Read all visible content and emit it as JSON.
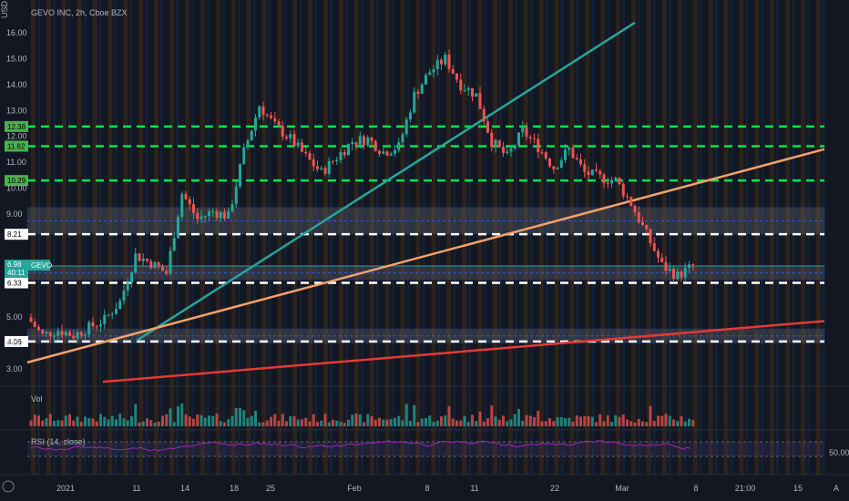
{
  "header": {
    "title": "GEVO INC, 2h, Cboe BZX",
    "currency": "USD"
  },
  "colors": {
    "bg": "#131722",
    "up": "#26a69a",
    "down": "#ef5350",
    "green_line": "#00e64d",
    "white_line": "#ffffff",
    "trend_teal": "#26a69a",
    "trend_orange": "#f5a16c",
    "trend_red": "#e53935",
    "zone_fill": "#787b86",
    "zone_border": "#2962ff",
    "rsi_line": "#9c27b0",
    "rsi_band": "#7e57c2"
  },
  "chart_data": {
    "type": "candlestick",
    "y_axis": {
      "min": 2.4,
      "max": 16.5,
      "ticks": [
        "3.00",
        "4.00",
        "5.00",
        "9.00",
        "10.00",
        "11.00",
        "12.00",
        "13.00",
        "14.00",
        "15.00",
        "16.00"
      ]
    },
    "x_axis": {
      "labels": [
        "2021",
        "11",
        "14",
        "18",
        "25",
        "Feb",
        "8",
        "11",
        "22",
        "Mar",
        "8",
        "21:00",
        "15",
        "A"
      ]
    },
    "levels": [
      {
        "label": "12.38",
        "value": 12.38,
        "color": "#00e64d",
        "style": "dashed"
      },
      {
        "label": "11.62",
        "value": 11.62,
        "color": "#00e64d",
        "style": "dashed"
      },
      {
        "label": "10.29",
        "value": 10.29,
        "color": "#00e64d",
        "style": "dashed"
      },
      {
        "label": "8.21",
        "value": 8.21,
        "color": "#ffffff",
        "style": "dashed"
      },
      {
        "label": "6.33",
        "value": 6.33,
        "color": "#ffffff",
        "style": "dashed"
      },
      {
        "label": "4.06",
        "value": 4.06,
        "color": "#ffffff",
        "style": "dashed"
      }
    ],
    "zones": [
      {
        "low": 8.21,
        "high": 9.25
      },
      {
        "low": 6.45,
        "high": 7.0
      },
      {
        "low": 4.0,
        "high": 4.55
      }
    ],
    "current": {
      "symbol": "GEVO",
      "price": "6.98",
      "countdown": "40:11"
    },
    "trendlines": [
      {
        "name": "teal",
        "color": "#26a69a",
        "from": [
          "10",
          4.1
        ],
        "to": [
          "21:00",
          16.4
        ]
      },
      {
        "name": "orange",
        "color": "#f5a16c",
        "from": [
          "2021",
          3.25
        ],
        "to": [
          "A",
          11.5
        ]
      },
      {
        "name": "red",
        "color": "#e53935",
        "from": [
          "11",
          2.5
        ],
        "to": [
          "A",
          4.85
        ]
      }
    ],
    "close_path": [
      [
        "2021",
        5.0
      ],
      [
        "5",
        4.3
      ],
      [
        "6",
        4.5
      ],
      [
        "7",
        4.3
      ],
      [
        "8",
        4.6
      ],
      [
        "11",
        4.9
      ],
      [
        "12",
        5.6
      ],
      [
        "13",
        7.4
      ],
      [
        "14",
        7.1
      ],
      [
        "15",
        6.7
      ],
      [
        "18",
        9.8
      ],
      [
        "19",
        8.8
      ],
      [
        "20",
        9.1
      ],
      [
        "21",
        8.9
      ],
      [
        "22",
        11.4
      ],
      [
        "25",
        13.2
      ],
      [
        "26",
        12.4
      ],
      [
        "27",
        11.9
      ],
      [
        "28",
        11.2
      ],
      [
        "29",
        10.6
      ],
      [
        "Feb",
        11.2
      ],
      [
        "2",
        11.8
      ],
      [
        "3",
        11.9
      ],
      [
        "4",
        11.4
      ],
      [
        "5",
        11.6
      ],
      [
        "8",
        13.6
      ],
      [
        "9",
        14.5
      ],
      [
        "10",
        15.0
      ],
      [
        "11",
        14.0
      ],
      [
        "12",
        13.6
      ],
      [
        "16",
        11.8
      ],
      [
        "17",
        11.2
      ],
      [
        "18",
        12.2
      ],
      [
        "19",
        11.6
      ],
      [
        "22",
        10.8
      ],
      [
        "23",
        11.5
      ],
      [
        "24",
        10.6
      ],
      [
        "25",
        10.4
      ],
      [
        "26",
        10.3
      ],
      [
        "Mar",
        9.4
      ],
      [
        "2",
        8.2
      ],
      [
        "3",
        7.0
      ],
      [
        "4",
        6.6
      ],
      [
        "5",
        6.98
      ]
    ],
    "volume_label": "Vol",
    "rsi": {
      "label": "RSI (14, close)",
      "level_label": "50.00",
      "upper": 70,
      "lower": 30
    }
  }
}
